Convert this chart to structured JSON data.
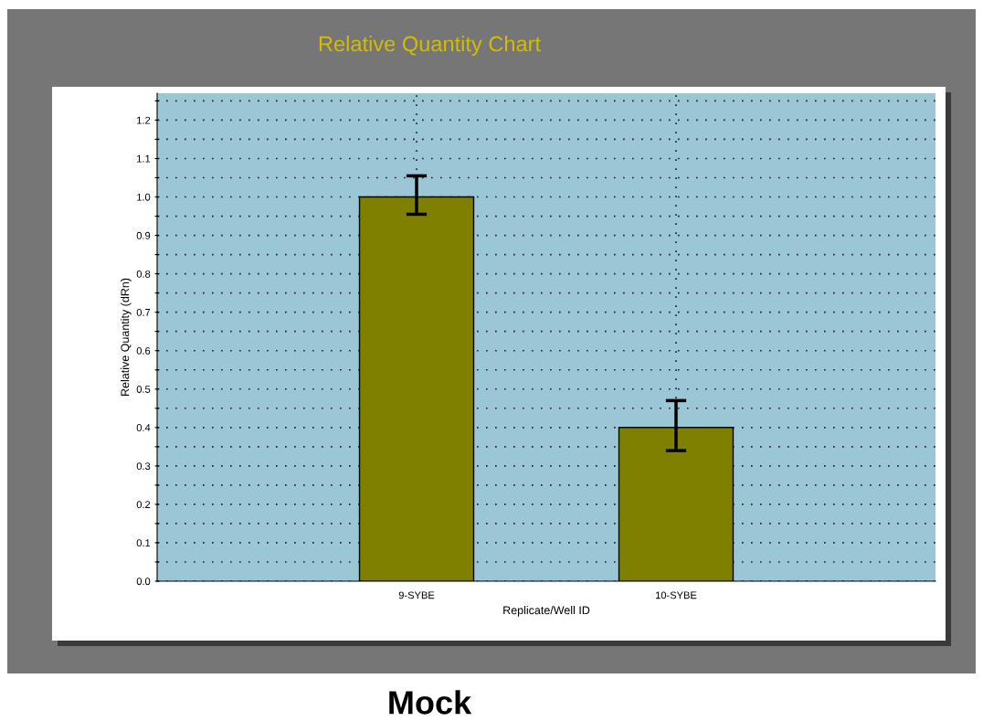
{
  "chart_data": {
    "type": "bar",
    "title": "Relative Quantity Chart",
    "xlabel": "Replicate/Well ID",
    "ylabel": "Relative Quantity (dRn)",
    "categories": [
      "9-SYBE",
      "10-SYBE"
    ],
    "values": [
      1.0,
      0.4
    ],
    "errors": [
      [
        0.955,
        1.055
      ],
      [
        0.34,
        0.47
      ]
    ],
    "color": "#808000",
    "ylim": [
      0,
      1.27
    ],
    "yticks": [
      {
        "value": 0,
        "label": "0.0"
      },
      {
        "value": 0.05,
        "label": null
      },
      {
        "value": 0.1,
        "label": "0.1"
      },
      {
        "value": 0.15,
        "label": null
      },
      {
        "value": 0.2,
        "label": "0.2"
      },
      {
        "value": 0.25,
        "label": null
      },
      {
        "value": 0.3,
        "label": "0.3"
      },
      {
        "value": 0.35,
        "label": null
      },
      {
        "value": 0.4,
        "label": "0.4"
      },
      {
        "value": 0.45,
        "label": null
      },
      {
        "value": 0.5,
        "label": "0.5"
      },
      {
        "value": 0.55,
        "label": null
      },
      {
        "value": 0.6,
        "label": "0.6"
      },
      {
        "value": 0.65,
        "label": null
      },
      {
        "value": 0.7,
        "label": "0.7"
      },
      {
        "value": 0.75,
        "label": null
      },
      {
        "value": 0.8,
        "label": "0.8"
      },
      {
        "value": 0.85,
        "label": null
      },
      {
        "value": 0.9,
        "label": "0.9"
      },
      {
        "value": 0.95,
        "label": null
      },
      {
        "value": 1.0,
        "label": "1.0"
      },
      {
        "value": 1.05,
        "label": null
      },
      {
        "value": 1.1,
        "label": "1.1"
      },
      {
        "value": 1.15,
        "label": null
      },
      {
        "value": 1.2,
        "label": "1.2"
      },
      {
        "value": 1.25,
        "label": null
      }
    ],
    "grid": true,
    "annotations": [
      "Mock"
    ]
  }
}
